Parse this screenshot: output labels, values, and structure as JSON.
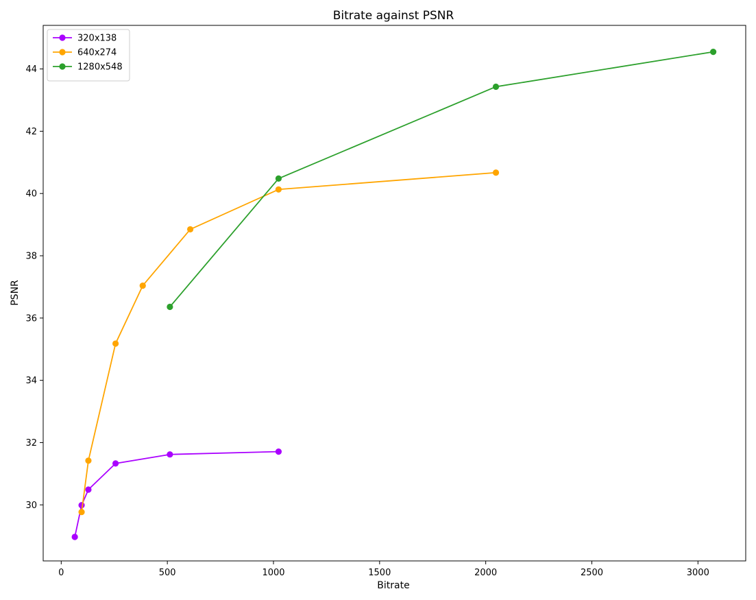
{
  "chart_data": {
    "type": "line",
    "title": "Bitrate against PSNR",
    "xlabel": "Bitrate",
    "ylabel": "PSNR",
    "xlim": [
      -85,
      3225
    ],
    "ylim": [
      28.2,
      45.4
    ],
    "xticks": [
      0,
      500,
      1000,
      1500,
      2000,
      2500,
      3000
    ],
    "yticks": [
      30,
      32,
      34,
      36,
      38,
      40,
      42,
      44
    ],
    "grid": false,
    "legend_position": "top-left",
    "series": [
      {
        "name": "320x138",
        "color": "#aa00ff",
        "marker": "circle",
        "x": [
          64,
          96,
          128,
          256,
          512,
          1024
        ],
        "y": [
          28.97,
          29.99,
          30.49,
          31.33,
          31.62,
          31.71
        ]
      },
      {
        "name": "640x274",
        "color": "#ffa500",
        "marker": "circle",
        "x": [
          96,
          128,
          256,
          384,
          608,
          1024,
          2048
        ],
        "y": [
          29.77,
          31.42,
          35.18,
          37.04,
          38.85,
          40.13,
          40.67
        ]
      },
      {
        "name": "1280x548",
        "color": "#2ca02c",
        "marker": "circle",
        "x": [
          512,
          1024,
          2048,
          3072
        ],
        "y": [
          36.36,
          40.48,
          43.43,
          44.55
        ]
      }
    ]
  }
}
